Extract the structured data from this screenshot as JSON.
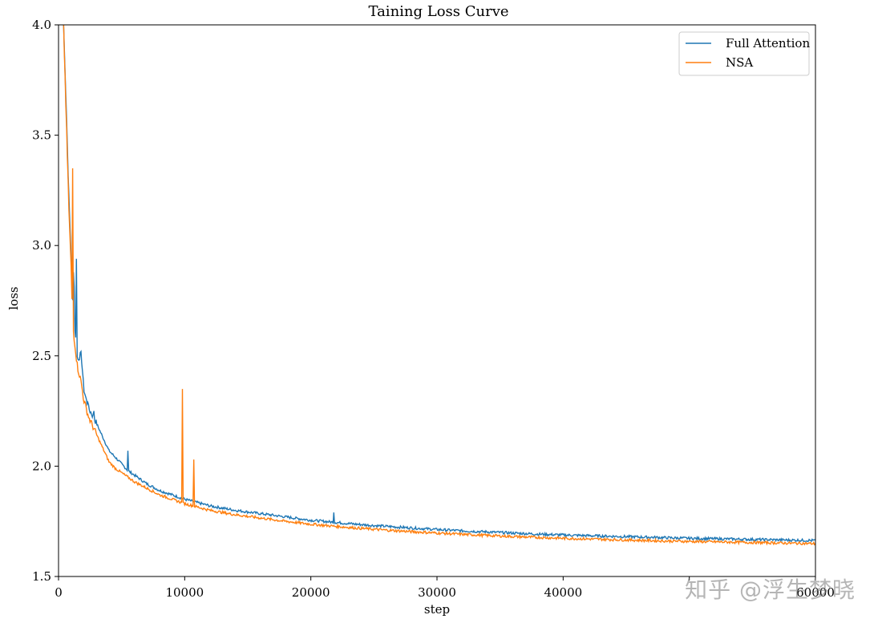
{
  "chart_data": {
    "type": "line",
    "title": "Taining Loss Curve",
    "xlabel": "step",
    "ylabel": "loss",
    "xlim": [
      0,
      60000
    ],
    "ylim": [
      1.5,
      4.0
    ],
    "xticks": [
      0,
      10000,
      20000,
      30000,
      40000,
      50000,
      60000
    ],
    "xtick_labels": [
      "0",
      "10000",
      "20000",
      "30000",
      "40000",
      "",
      "60000"
    ],
    "yticks": [
      1.5,
      2.0,
      2.5,
      3.0,
      3.5,
      4.0
    ],
    "ytick_labels": [
      "1.5",
      "2.0",
      "2.5",
      "3.0",
      "3.5",
      "4.0"
    ],
    "grid": false,
    "legend_position": "top-right",
    "series": [
      {
        "name": "Full Attention",
        "color": "#1f77b4",
        "x": [
          400,
          600,
          800,
          1000,
          1100,
          1200,
          1300,
          1400,
          1500,
          1800,
          2000,
          2200,
          2400,
          2800,
          3200,
          3600,
          4000,
          4500,
          5000,
          5500,
          6000,
          7000,
          8000,
          9000,
          10000,
          12000,
          14000,
          16000,
          18000,
          20000,
          22000,
          24000,
          26000,
          28000,
          30000,
          32000,
          34000,
          36000,
          38000,
          40000,
          42000,
          44000,
          46000,
          48000,
          50000,
          52000,
          54000,
          56000,
          58000,
          60000
        ],
        "y": [
          4.0,
          3.65,
          3.25,
          2.95,
          2.7,
          2.94,
          2.62,
          2.55,
          2.48,
          2.51,
          2.35,
          2.3,
          2.26,
          2.22,
          2.17,
          2.12,
          2.07,
          2.04,
          2.01,
          1.98,
          1.96,
          1.92,
          1.89,
          1.87,
          1.85,
          1.82,
          1.8,
          1.785,
          1.77,
          1.755,
          1.745,
          1.735,
          1.727,
          1.72,
          1.713,
          1.707,
          1.702,
          1.697,
          1.692,
          1.688,
          1.685,
          1.682,
          1.679,
          1.676,
          1.673,
          1.671,
          1.669,
          1.667,
          1.665,
          1.663
        ],
        "spikes": [
          [
            1400,
            2.94
          ],
          [
            1800,
            2.52
          ],
          [
            2300,
            2.29
          ],
          [
            2800,
            2.25
          ],
          [
            4500,
            2.04
          ],
          [
            5500,
            2.07
          ],
          [
            21800,
            1.79
          ]
        ]
      },
      {
        "name": "NSA",
        "color": "#ff7f0e",
        "x": [
          400,
          600,
          800,
          1000,
          1100,
          1200,
          1300,
          1400,
          1500,
          1800,
          2000,
          2200,
          2400,
          2800,
          3200,
          3600,
          4000,
          4500,
          5000,
          5500,
          6000,
          7000,
          8000,
          9000,
          10000,
          12000,
          14000,
          16000,
          18000,
          20000,
          22000,
          24000,
          26000,
          28000,
          30000,
          32000,
          34000,
          36000,
          38000,
          40000,
          42000,
          44000,
          46000,
          48000,
          50000,
          52000,
          54000,
          56000,
          58000,
          60000
        ],
        "y": [
          4.0,
          3.6,
          3.2,
          2.9,
          2.65,
          2.6,
          2.55,
          2.5,
          2.45,
          2.38,
          2.3,
          2.26,
          2.22,
          2.17,
          2.12,
          2.07,
          2.02,
          1.99,
          1.97,
          1.95,
          1.93,
          1.9,
          1.87,
          1.85,
          1.83,
          1.8,
          1.78,
          1.765,
          1.75,
          1.737,
          1.727,
          1.718,
          1.71,
          1.703,
          1.697,
          1.691,
          1.686,
          1.681,
          1.677,
          1.673,
          1.67,
          1.667,
          1.664,
          1.661,
          1.659,
          1.657,
          1.655,
          1.653,
          1.651,
          1.649
        ],
        "spikes": [
          [
            1100,
            3.35
          ],
          [
            9800,
            2.35
          ],
          [
            10700,
            2.03
          ]
        ]
      }
    ]
  },
  "watermark": "知乎 @浮生梦晓"
}
